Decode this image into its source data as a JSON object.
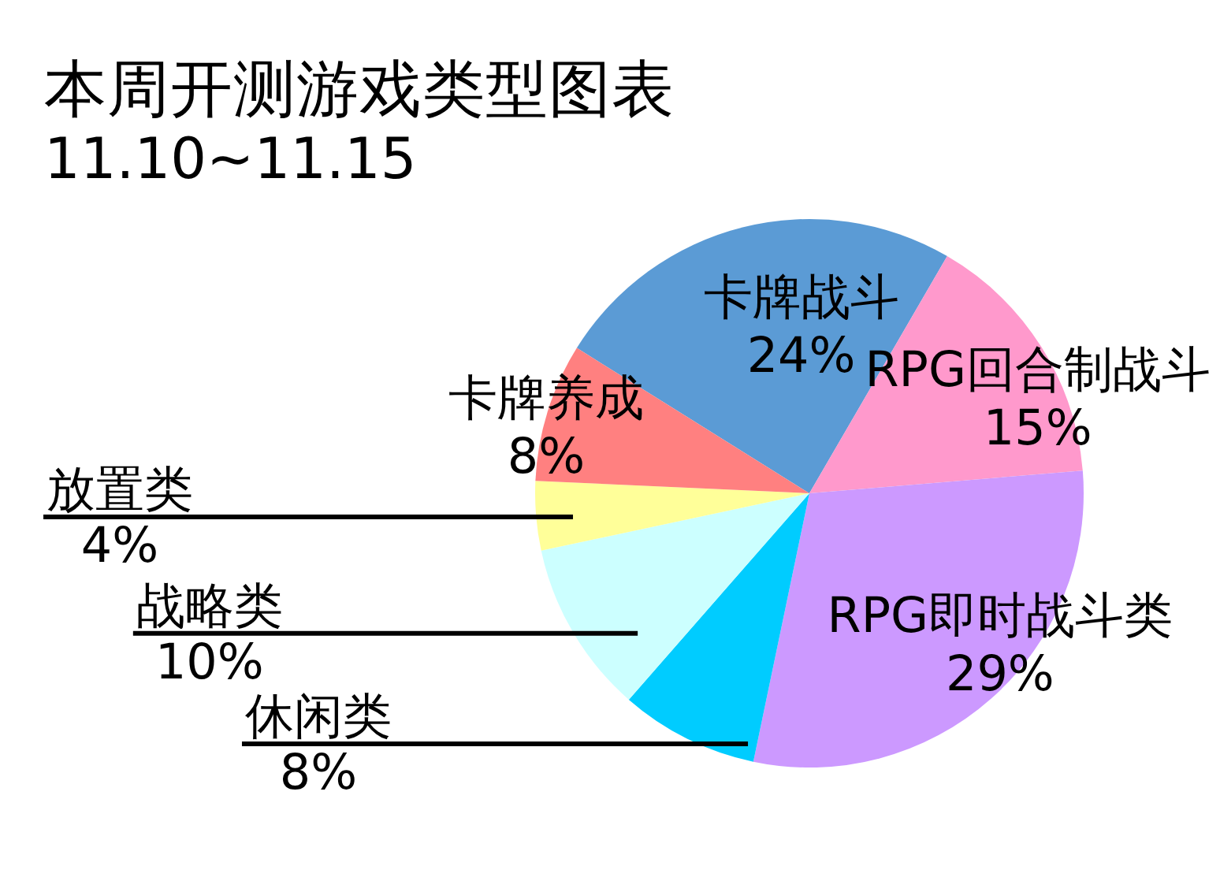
{
  "chart_data": {
    "type": "pie",
    "title": "本周开测游戏类型图表",
    "subtitle": "11.10~11.15",
    "categories": [
      "卡牌战斗",
      "RPG回合制战斗",
      "RPG即时战斗类",
      "休闲类",
      "战略类",
      "放置类",
      "卡牌养成"
    ],
    "values": [
      24,
      15,
      29,
      8,
      10,
      4,
      8
    ],
    "value_labels": [
      "24%",
      "15%",
      "29%",
      "8%",
      "10%",
      "4%",
      "8%"
    ],
    "colors": [
      "#5b9bd5",
      "#ff99cc",
      "#cc99ff",
      "#00ccff",
      "#ccffff",
      "#ffff99",
      "#ff8080"
    ]
  }
}
